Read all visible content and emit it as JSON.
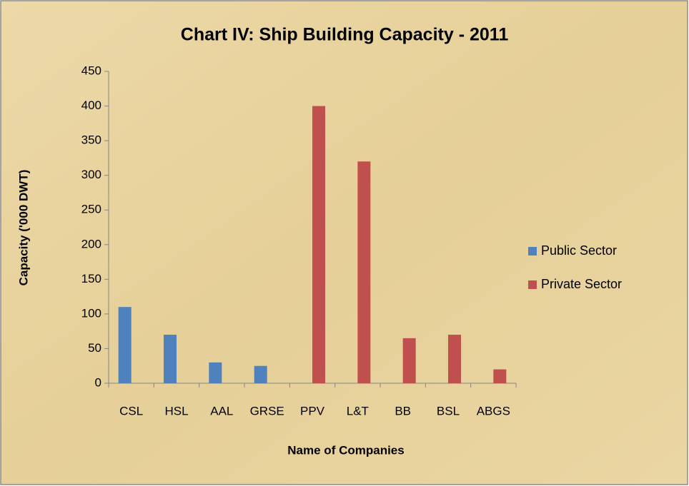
{
  "chart_data": {
    "type": "bar",
    "title": "Chart IV: Ship Building Capacity - 2011",
    "x_label": "Name of Companies",
    "y_label": "Capacity ('000 DWT)",
    "categories": [
      "CSL",
      "HSL",
      "AAL",
      "GRSE",
      "PPV",
      "L&T",
      "BB",
      "BSL",
      "ABGS"
    ],
    "series": [
      {
        "name": "Public Sector",
        "color": "#4f81bd",
        "values": [
          110,
          70,
          30,
          25,
          null,
          null,
          null,
          null,
          null
        ]
      },
      {
        "name": "Private Sector",
        "color": "#c0504d",
        "values": [
          null,
          null,
          null,
          null,
          400,
          320,
          65,
          70,
          20
        ]
      }
    ],
    "ylim": [
      0,
      450
    ],
    "yticks": [
      0,
      50,
      100,
      150,
      200,
      250,
      300,
      350,
      400,
      450
    ],
    "legend": "right"
  }
}
